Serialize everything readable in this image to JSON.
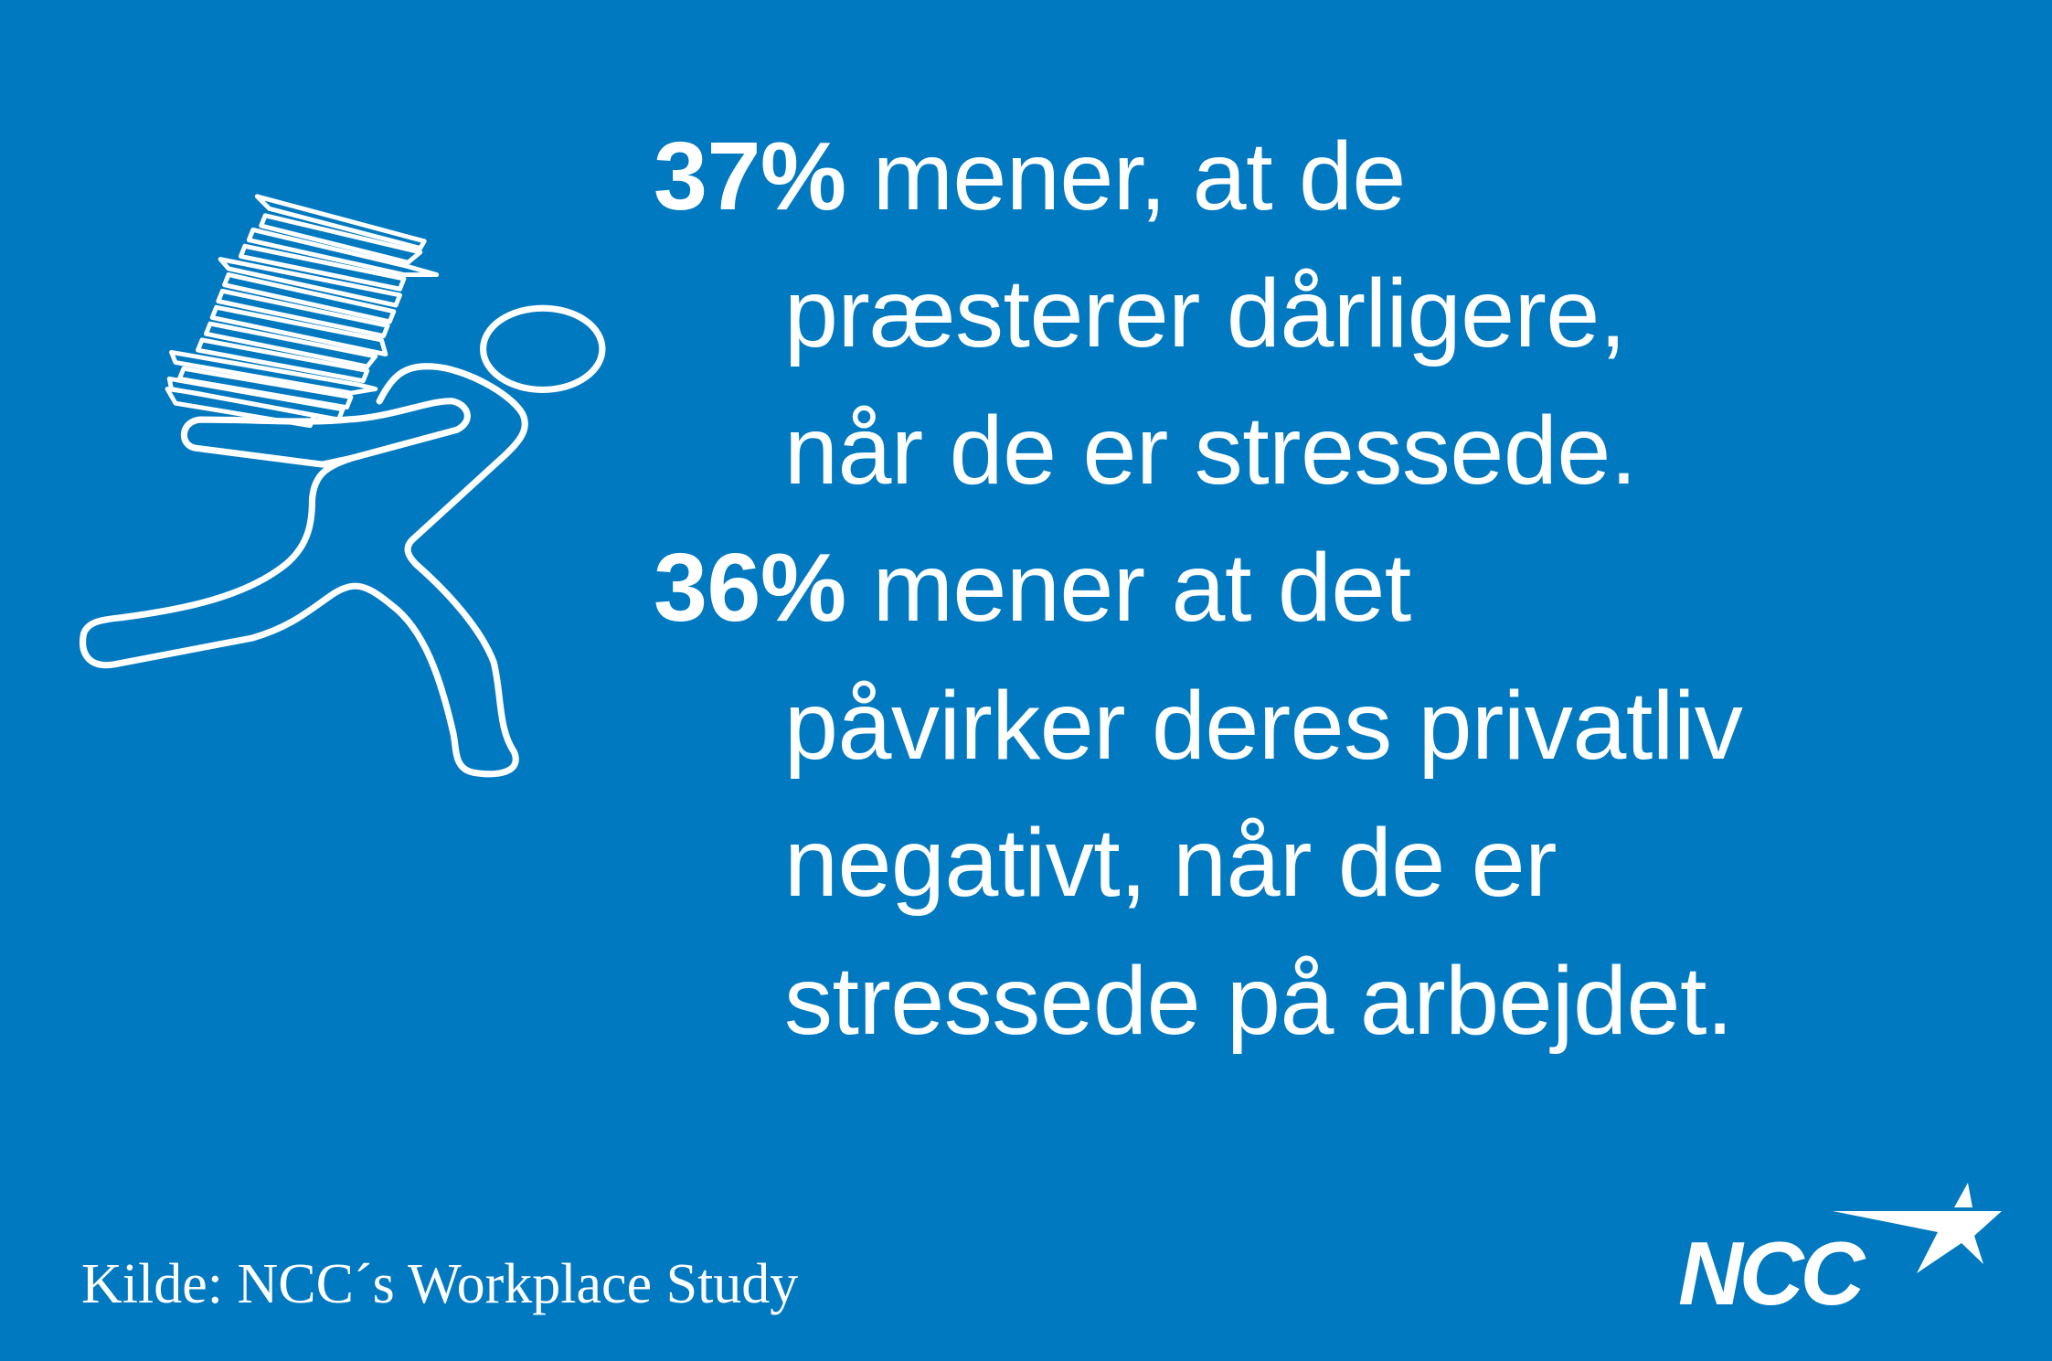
{
  "background_color": "#0079C1",
  "text_color": "#FFFFFF",
  "stats": [
    {
      "percent": "37%",
      "lines": [
        "mener, at de",
        "præsterer dårligere,",
        "når de er stressede."
      ]
    },
    {
      "percent": "36%",
      "lines": [
        "mener at det",
        "påvirker deres privatliv",
        "negativt, når de er",
        "stressede på arbejdet."
      ]
    }
  ],
  "source": "Kilde: NCC´s Workplace Study",
  "illustration": "stressed-person-carrying-paper-stack-icon",
  "logo": {
    "text": "NCC",
    "icon": "ncc-star-logo"
  }
}
